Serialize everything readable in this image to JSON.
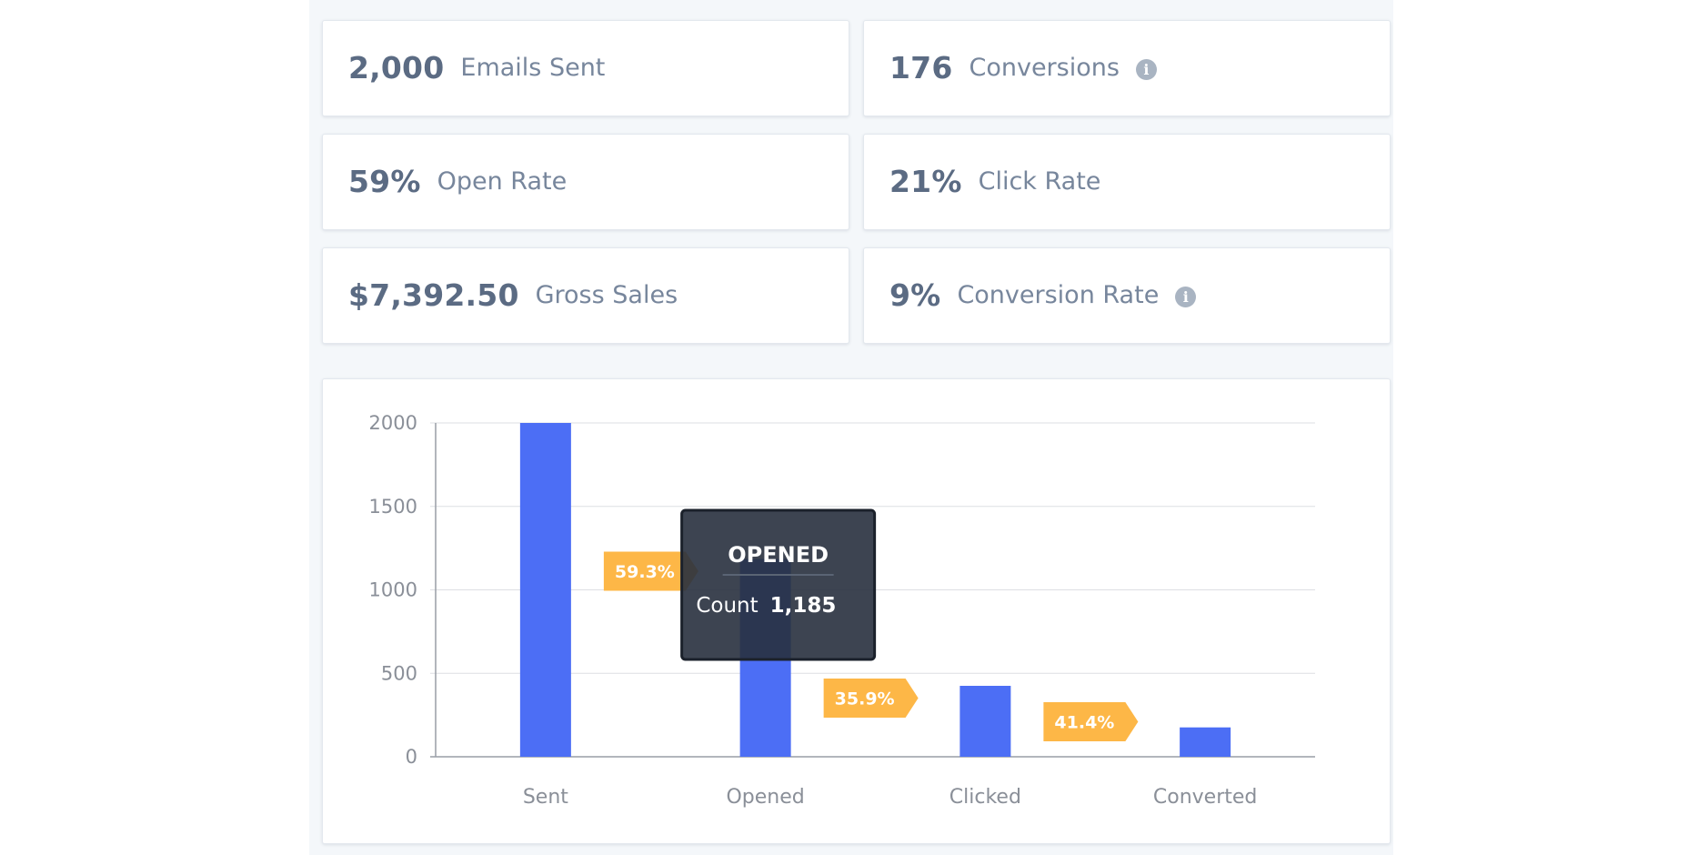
{
  "stats": [
    {
      "value": "2,000",
      "label": "Emails Sent",
      "info": false
    },
    {
      "value": "176",
      "label": "Conversions",
      "info": true
    },
    {
      "value": "59%",
      "label": "Open Rate",
      "info": false
    },
    {
      "value": "21%",
      "label": "Click Rate",
      "info": false
    },
    {
      "value": "$7,392.50",
      "label": "Gross Sales",
      "info": false
    },
    {
      "value": "9%",
      "label": "Conversion Rate",
      "info": true
    }
  ],
  "info_icon": {
    "name": "info-icon",
    "glyph": "i"
  },
  "chart_data": {
    "type": "bar",
    "categories": [
      "Sent",
      "Opened",
      "Clicked",
      "Converted"
    ],
    "values": [
      2000,
      1185,
      425,
      176
    ],
    "ylim": [
      0,
      2000
    ],
    "yticks": [
      0,
      500,
      1000,
      1500,
      2000
    ],
    "grid": true,
    "bar_color": "#4c6ef5",
    "rates": [
      "59.3%",
      "35.9%",
      "41.4%"
    ],
    "rate_color": "#fdb747",
    "tooltip": {
      "title": "OPENED",
      "label": "Count",
      "value": "1,185",
      "category": "Opened"
    }
  }
}
